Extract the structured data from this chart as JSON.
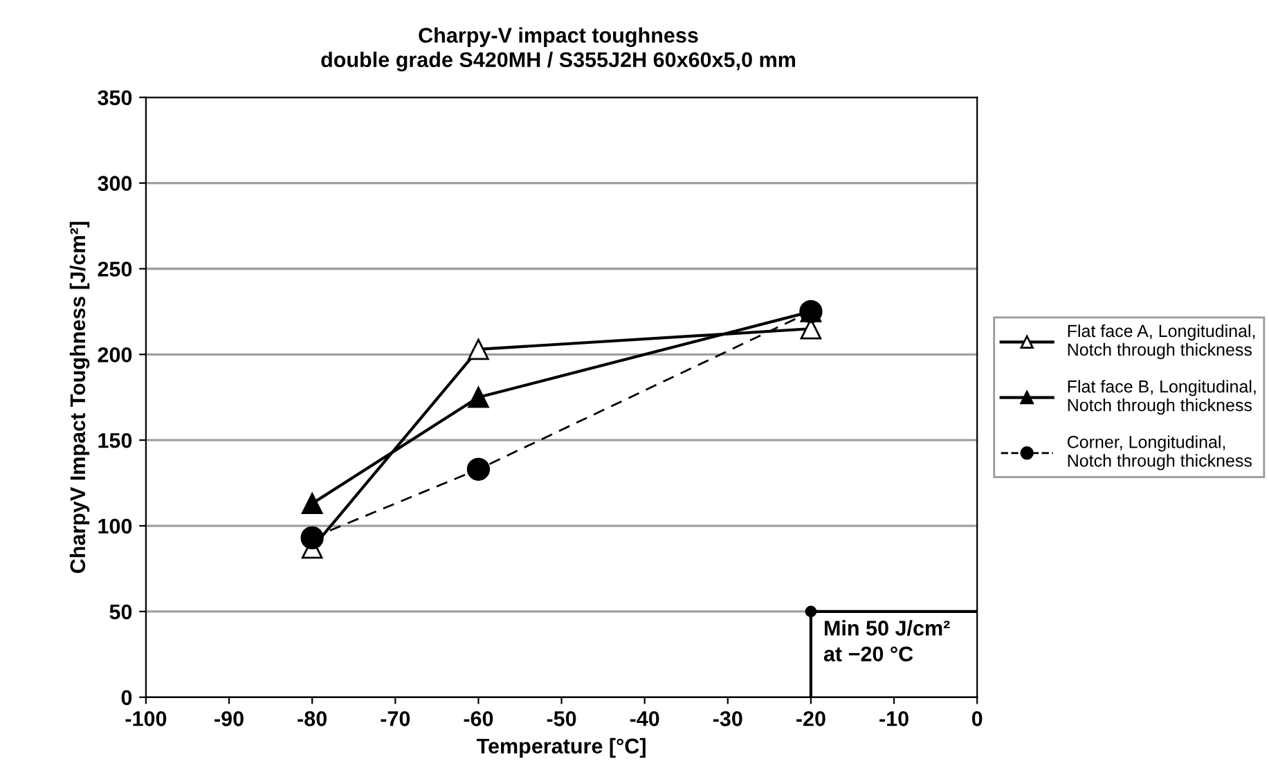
{
  "chart_data": {
    "type": "line",
    "title": "Charpy-V impact toughness",
    "subtitle": "double grade S420MH / S355J2H 60x60x5,0 mm",
    "xlabel": "Temperature [°C]",
    "ylabel": "CharpyV Impact Toughness [J/cm²]",
    "x": [
      -80,
      -60,
      -20
    ],
    "series": [
      {
        "name": "Flat face A, Longitudinal,\nNotch through thickness",
        "color": "#000000",
        "marker": "triangle-open",
        "line_style": "solid",
        "values": [
          87,
          203,
          215
        ]
      },
      {
        "name": "Flat face B, Longitudinal,\nNotch through thickness",
        "color": "#000000",
        "marker": "triangle",
        "line_style": "solid",
        "values": [
          113,
          175,
          225
        ]
      },
      {
        "name": "Corner, Longitudinal,\nNotch through thickness",
        "color": "#000000",
        "marker": "circle",
        "line_style": "dashed",
        "values": [
          93,
          133,
          225
        ]
      }
    ],
    "annotations": [
      {
        "text": "Min 50 J/cm²\nat −20 °C",
        "x": -20,
        "y": 50
      }
    ],
    "xlim": [
      -100,
      0
    ],
    "xticks": [
      -100,
      -90,
      -80,
      -70,
      -60,
      -50,
      -40,
      -30,
      -20,
      -10,
      0
    ],
    "ylim": [
      0,
      350
    ],
    "yticks": [
      0,
      50,
      100,
      150,
      200,
      250,
      300,
      350
    ],
    "grid": "y",
    "legend": "right"
  }
}
